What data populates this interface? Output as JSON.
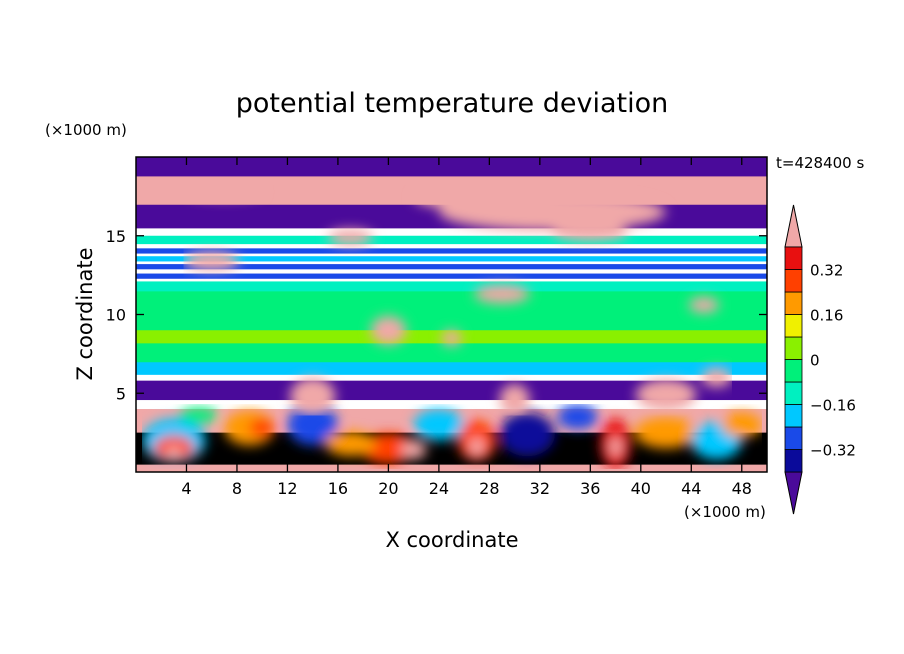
{
  "chart_data": {
    "type": "heatmap",
    "title": "potential temperature deviation",
    "xlabel": "X coordinate",
    "ylabel": "Z coordinate",
    "x_unit": "(×1000 m)",
    "y_unit": "(×1000 m)",
    "time_label": "t=428400 s",
    "xlim": [
      0,
      50
    ],
    "ylim": [
      0,
      20
    ],
    "x_ticks": [
      4,
      8,
      12,
      16,
      20,
      24,
      28,
      32,
      36,
      40,
      44,
      48
    ],
    "y_ticks": [
      5,
      10,
      15
    ],
    "colorbar": {
      "levels": [
        -0.4,
        -0.32,
        -0.24,
        -0.16,
        -0.08,
        0,
        0.08,
        0.16,
        0.24,
        0.32,
        0.4
      ],
      "tick_labels": [
        "0.32",
        "0.16",
        "0",
        "−0.16",
        "−0.32"
      ],
      "tick_values": [
        0.32,
        0.16,
        0,
        -0.16,
        -0.32
      ],
      "colors": [
        "#4a0a9a",
        "#0a0a9a",
        "#1a4ae8",
        "#00c8ff",
        "#00f0c0",
        "#00f07a",
        "#8af000",
        "#f0f000",
        "#ff9a00",
        "#ff4000",
        "#e81010",
        "#f0a8a8"
      ],
      "extend": "both"
    }
  }
}
